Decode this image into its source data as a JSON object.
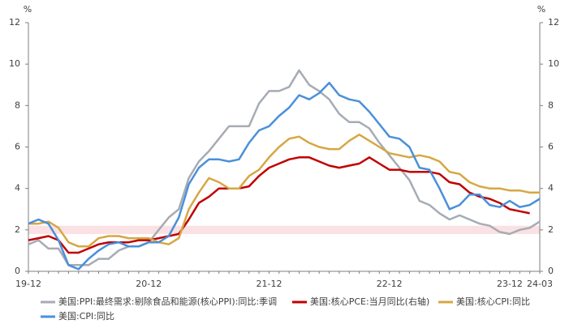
{
  "chart_data": {
    "type": "line",
    "y_unit": "%",
    "y2_unit": "%",
    "categories": [
      "19-12",
      null,
      null,
      null,
      null,
      null,
      null,
      null,
      null,
      null,
      null,
      null,
      "20-12",
      null,
      null,
      null,
      null,
      null,
      null,
      null,
      null,
      null,
      null,
      null,
      "21-12",
      null,
      null,
      null,
      null,
      null,
      null,
      null,
      null,
      null,
      null,
      null,
      "22-12",
      null,
      null,
      null,
      null,
      null,
      null,
      null,
      null,
      null,
      null,
      null,
      "23-12",
      null,
      null,
      "24-03"
    ],
    "ylim": [
      0,
      12
    ],
    "yticks": [
      0,
      2,
      4,
      6,
      8,
      10,
      12
    ],
    "y2lim": [
      0,
      12
    ],
    "y2ticks": [
      0,
      2,
      4,
      6,
      8,
      10,
      12
    ],
    "band": [
      1.8,
      2.2
    ],
    "band_color": "#f9d9dc",
    "series": [
      {
        "name": "美国:PPI:最终需求:剔除食品和能源(核心PPI):同比:季调",
        "color": "#a6abb4",
        "values": [
          1.3,
          1.5,
          1.1,
          1.1,
          0.3,
          0.3,
          0.3,
          0.6,
          0.6,
          1.0,
          1.2,
          1.2,
          1.4,
          2.0,
          2.6,
          3.0,
          4.5,
          5.3,
          5.8,
          6.4,
          7.0,
          7.0,
          7.0,
          8.1,
          8.7,
          8.7,
          8.9,
          9.7,
          9.0,
          8.7,
          8.3,
          7.6,
          7.2,
          7.2,
          6.9,
          6.2,
          5.6,
          5.0,
          4.4,
          3.4,
          3.2,
          2.8,
          2.5,
          2.7,
          2.5,
          2.3,
          2.2,
          1.9,
          1.8,
          2.0,
          2.1,
          2.4
        ]
      },
      {
        "name": "美国:核心PCE:当月同比(右轴)",
        "color": "#c00000",
        "axis": "y2",
        "values": [
          1.5,
          1.6,
          1.7,
          1.5,
          0.9,
          0.9,
          1.1,
          1.3,
          1.4,
          1.4,
          1.4,
          1.5,
          1.5,
          1.6,
          1.7,
          1.8,
          2.5,
          3.3,
          3.6,
          4.0,
          4.0,
          4.0,
          4.1,
          4.6,
          5.0,
          5.2,
          5.4,
          5.5,
          5.5,
          5.3,
          5.1,
          5.0,
          5.1,
          5.2,
          5.5,
          5.2,
          4.9,
          4.9,
          4.8,
          4.8,
          4.8,
          4.7,
          4.3,
          4.2,
          3.8,
          3.6,
          3.5,
          3.3,
          3.0,
          2.9,
          2.8,
          null
        ]
      },
      {
        "name": "美国:核心CPI:同比",
        "color": "#d6a743",
        "values": [
          2.3,
          2.3,
          2.4,
          2.1,
          1.4,
          1.2,
          1.2,
          1.6,
          1.7,
          1.7,
          1.6,
          1.6,
          1.6,
          1.4,
          1.3,
          1.6,
          3.0,
          3.8,
          4.5,
          4.3,
          4.0,
          4.0,
          4.6,
          4.9,
          5.5,
          6.0,
          6.4,
          6.5,
          6.2,
          6.0,
          5.9,
          5.9,
          6.3,
          6.6,
          6.3,
          6.0,
          5.7,
          5.6,
          5.5,
          5.6,
          5.5,
          5.3,
          4.8,
          4.7,
          4.3,
          4.1,
          4.0,
          4.0,
          3.9,
          3.9,
          3.8,
          3.8
        ]
      },
      {
        "name": "美国:CPI:同比",
        "color": "#4a90d9",
        "values": [
          2.3,
          2.5,
          2.3,
          1.5,
          0.3,
          0.1,
          0.6,
          1.0,
          1.3,
          1.4,
          1.2,
          1.2,
          1.4,
          1.4,
          1.7,
          2.6,
          4.2,
          5.0,
          5.4,
          5.4,
          5.3,
          5.4,
          6.2,
          6.8,
          7.0,
          7.5,
          7.9,
          8.5,
          8.3,
          8.6,
          9.1,
          8.5,
          8.3,
          8.2,
          7.7,
          7.1,
          6.5,
          6.4,
          6.0,
          5.0,
          4.9,
          4.0,
          3.0,
          3.2,
          3.7,
          3.7,
          3.2,
          3.1,
          3.4,
          3.1,
          3.2,
          3.5
        ]
      }
    ]
  }
}
